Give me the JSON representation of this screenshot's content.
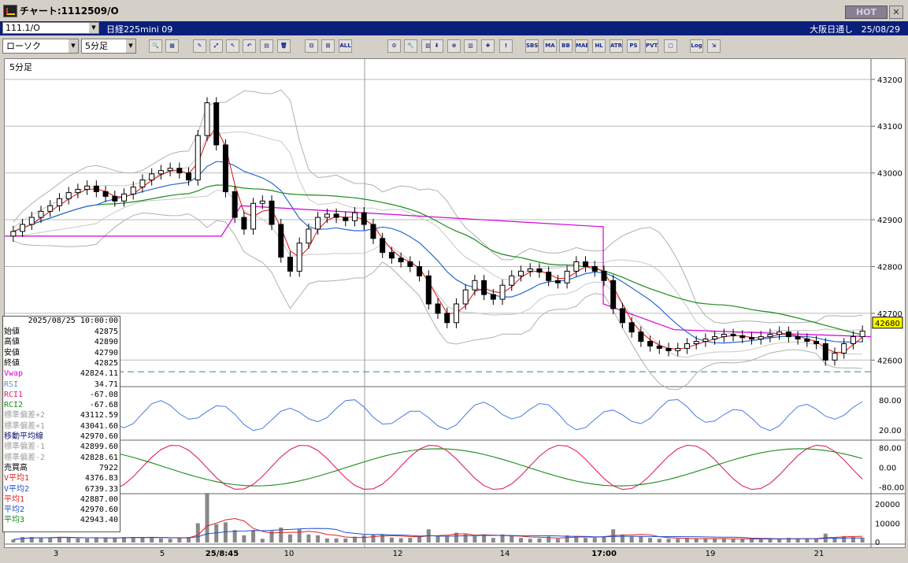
{
  "window": {
    "title": "チャート:1112509/O",
    "hot_label": "HOT",
    "close_glyph": "✕"
  },
  "infobar": {
    "symbol_code": "111.1/O",
    "symbol_name": "日経225mini 09",
    "session": "大阪日通し",
    "date": "25/08/29"
  },
  "toolbar": {
    "chart_type": "ローソク",
    "interval": "5分足",
    "buttons": [
      {
        "name": "search-icon",
        "glyph": "🔍"
      },
      {
        "name": "layout-icon",
        "glyph": "▦"
      },
      {
        "name": "pen-icon",
        "glyph": "✎"
      },
      {
        "name": "draw-icon",
        "glyph": "⤢"
      },
      {
        "name": "cursor-icon",
        "glyph": "↖"
      },
      {
        "name": "undo-icon",
        "glyph": "↶"
      },
      {
        "name": "notes-icon",
        "glyph": "▤"
      },
      {
        "name": "trash-icon",
        "glyph": "🗑"
      },
      {
        "name": "hline-icon",
        "glyph": "⊟"
      },
      {
        "name": "vline-icon",
        "glyph": "⊞"
      },
      {
        "name": "all-label",
        "glyph": "ALL"
      },
      {
        "name": "settings-icon",
        "glyph": "⚙"
      },
      {
        "name": "wrench-icon",
        "glyph": "🔧"
      },
      {
        "name": "palette-icon",
        "glyph": "▨"
      },
      {
        "name": "download-icon",
        "glyph": "⬇"
      },
      {
        "name": "zoom-icon",
        "glyph": "⊕"
      },
      {
        "name": "bar-chart-icon",
        "glyph": "▥"
      },
      {
        "name": "cross-icon",
        "glyph": "✚"
      },
      {
        "name": "alert-icon",
        "glyph": "!"
      },
      {
        "name": "sbs-label",
        "glyph": "SBS"
      },
      {
        "name": "ma-label",
        "glyph": "MA"
      },
      {
        "name": "bb-label",
        "glyph": "BB"
      },
      {
        "name": "mae-label",
        "glyph": "MAE"
      },
      {
        "name": "hl-label",
        "glyph": "HL"
      },
      {
        "name": "atr-label",
        "glyph": "ATR"
      },
      {
        "name": "ps-label",
        "glyph": "PS"
      },
      {
        "name": "pvt-label",
        "glyph": "PVT"
      },
      {
        "name": "frame-icon",
        "glyph": "▢"
      },
      {
        "name": "log-label",
        "glyph": "Log"
      },
      {
        "name": "export-icon",
        "glyph": "⇲"
      }
    ]
  },
  "chart": {
    "interval_label": "5分足",
    "price_ticks": [
      "43200",
      "43100",
      "43000",
      "42900",
      "42800",
      "42700",
      "42600"
    ],
    "current_price": "42680",
    "rsi_ticks": [
      "80.00",
      "20.00"
    ],
    "rci_ticks": [
      "80.00",
      "0.00",
      "-80.00"
    ],
    "vol_ticks": [
      "20000",
      "10000",
      "0"
    ],
    "x_ticks": [
      "3",
      "5",
      "25/8:45",
      "10",
      "12",
      "14",
      "17:00",
      "19",
      "21"
    ]
  },
  "infopanel": {
    "date": "2025/08/25 10:00:00",
    "rows": [
      {
        "label": "始値",
        "value": "42875",
        "color": "#000000"
      },
      {
        "label": "高値",
        "value": "42890",
        "color": "#000000"
      },
      {
        "label": "安値",
        "value": "42790",
        "color": "#000000"
      },
      {
        "label": "終値",
        "value": "42825",
        "color": "#000000"
      },
      {
        "label": "Vwap",
        "value": "42824.11",
        "color": "#d400d4"
      },
      {
        "label": "RSI",
        "value": "34.71",
        "color": "#6a8ad0"
      },
      {
        "label": "RCI1",
        "value": "-67.08",
        "color": "#e0206a"
      },
      {
        "label": "RCI2",
        "value": "-67.68",
        "color": "#1a8a1a"
      },
      {
        "label": "標準偏差+2",
        "value": "43112.59",
        "color": "#a0a0a0"
      },
      {
        "label": "標準偏差+1",
        "value": "43041.60",
        "color": "#a0a0a0"
      },
      {
        "label": "移動平均線",
        "value": "42970.60",
        "color": "#101070"
      },
      {
        "label": "標準偏差-1",
        "value": "42899.60",
        "color": "#a0a0a0"
      },
      {
        "label": "標準偏差-2",
        "value": "42828.61",
        "color": "#a0a0a0"
      },
      {
        "label": "売買高",
        "value": "7922",
        "color": "#000000"
      },
      {
        "label": "V平均1",
        "value": "4376.83",
        "color": "#e02020"
      },
      {
        "label": "V平均2",
        "value": "6739.33",
        "color": "#2050d0"
      },
      {
        "label": "平均1",
        "value": "42887.00",
        "color": "#e02020"
      },
      {
        "label": "平均2",
        "value": "42970.60",
        "color": "#2050d0"
      },
      {
        "label": "平均3",
        "value": "42943.40",
        "color": "#1a8a1a"
      }
    ]
  },
  "chart_data": {
    "type": "candlestick",
    "price_range": [
      42550,
      43230
    ],
    "closes": [
      42875,
      42890,
      42905,
      42918,
      42930,
      42945,
      42958,
      42965,
      42972,
      42960,
      42950,
      42940,
      42955,
      42970,
      42985,
      42998,
      43005,
      43010,
      43000,
      42985,
      43080,
      43150,
      43060,
      42960,
      42905,
      42880,
      42935,
      42940,
      42890,
      42820,
      42790,
      42850,
      42880,
      42905,
      42912,
      42905,
      42898,
      42915,
      42890,
      42860,
      42830,
      42818,
      42810,
      42800,
      42780,
      42720,
      42700,
      42680,
      42720,
      42750,
      42770,
      42740,
      42730,
      42760,
      42780,
      42790,
      42795,
      42788,
      42770,
      42765,
      42790,
      42810,
      42800,
      42790,
      42770,
      42710,
      42680,
      42660,
      42640,
      42630,
      42625,
      42620,
      42625,
      42635,
      42640,
      42645,
      42650,
      42655,
      42652,
      42648,
      42645,
      42650,
      42655,
      42660,
      42650,
      42645,
      42640,
      42635,
      42600,
      42615,
      42635,
      42650,
      42662
    ]
  }
}
